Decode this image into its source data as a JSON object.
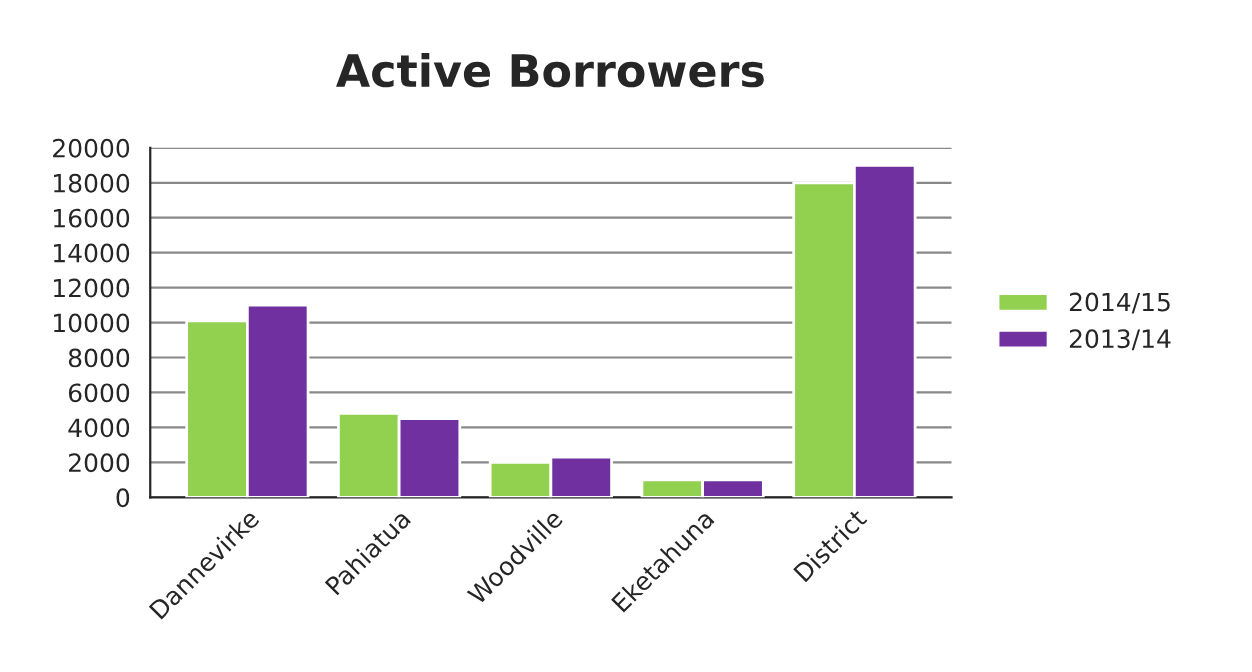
{
  "chart_data": {
    "type": "bar",
    "title": "Active Borrowers",
    "categories": [
      "Dannevirke",
      "Pahiatua",
      "Woodville",
      "Eketahuna",
      "District"
    ],
    "series": [
      {
        "name": "2014/15",
        "color": "#92d050",
        "values": [
          10100,
          4800,
          2000,
          1000,
          18000
        ]
      },
      {
        "name": "2013/14",
        "color": "#7030a0",
        "values": [
          11000,
          4500,
          2300,
          1000,
          19000
        ]
      }
    ],
    "ylim": [
      0,
      20000
    ],
    "yticks": [
      0,
      2000,
      4000,
      6000,
      8000,
      10000,
      12000,
      14000,
      16000,
      18000,
      20000
    ],
    "grid": "y",
    "legend": "right"
  }
}
